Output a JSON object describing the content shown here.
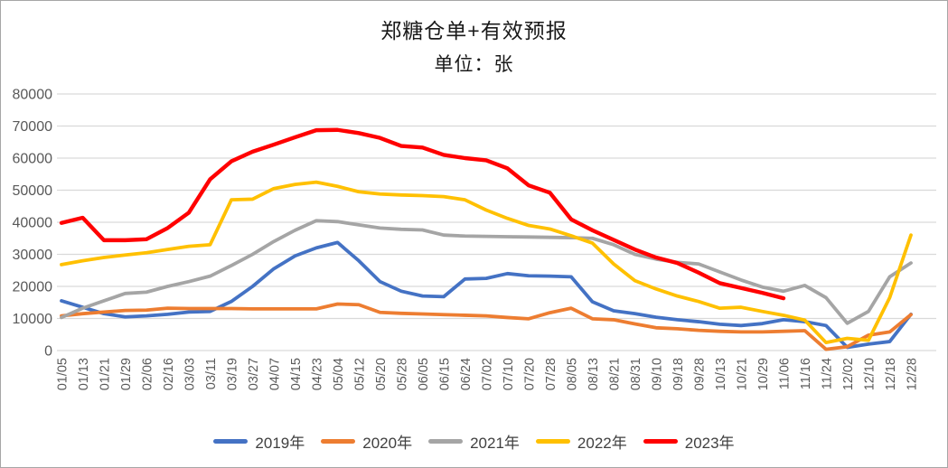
{
  "chart_data": {
    "type": "line",
    "title": "郑糖仓单+有效预报",
    "subtitle": "单位：张",
    "legend_position": "bottom",
    "grid": "horizontal",
    "ylim": [
      0,
      80000
    ],
    "yticks": [
      0,
      10000,
      20000,
      30000,
      40000,
      50000,
      60000,
      70000,
      80000
    ],
    "colors": {
      "grid": "#d9d9d9",
      "axis_text": "#595959",
      "title_text": "#1a1a1a",
      "legend_text": "#404040"
    },
    "categories": [
      "01/05",
      "01/13",
      "01/21",
      "01/29",
      "02/06",
      "02/16",
      "03/03",
      "03/11",
      "03/19",
      "03/27",
      "04/07",
      "04/15",
      "04/23",
      "05/04",
      "05/12",
      "05/20",
      "05/28",
      "06/05",
      "06/15",
      "06/24",
      "07/02",
      "07/10",
      "07/20",
      "07/28",
      "08/05",
      "08/13",
      "08/21",
      "08/31",
      "09/10",
      "09/18",
      "09/28",
      "10/13",
      "10/21",
      "10/29",
      "11/06",
      "11/16",
      "11/24",
      "12/02",
      "12/10",
      "12/18",
      "12/28"
    ],
    "series": [
      {
        "name": "2019年",
        "color": "#4472C4",
        "values": [
          15500,
          13500,
          11500,
          10500,
          10800,
          11300,
          12000,
          12200,
          15300,
          20000,
          25500,
          29500,
          32000,
          33700,
          28000,
          21500,
          18500,
          17000,
          16800,
          22300,
          22500,
          24000,
          23300,
          23200,
          23000,
          15200,
          12400,
          11500,
          10400,
          9600,
          9000,
          8200,
          7800,
          8400,
          9600,
          9000,
          7800,
          1000,
          2000,
          2800,
          11300
        ]
      },
      {
        "name": "2020年",
        "color": "#ED7D31",
        "values": [
          10800,
          11500,
          12000,
          12500,
          12600,
          13200,
          13100,
          13100,
          13100,
          13000,
          13000,
          13000,
          13000,
          14500,
          14300,
          11900,
          11600,
          11400,
          11200,
          11000,
          10800,
          10300,
          9900,
          11800,
          13200,
          9900,
          9600,
          8300,
          7100,
          6800,
          6300,
          6000,
          5800,
          5800,
          6000,
          6200,
          400,
          1200,
          4800,
          5800,
          11200
        ]
      },
      {
        "name": "2021年",
        "color": "#A5A5A5",
        "values": [
          10300,
          13200,
          15500,
          17800,
          18200,
          20000,
          21500,
          23200,
          26500,
          30000,
          34000,
          37500,
          40500,
          40200,
          39200,
          38200,
          37800,
          37600,
          36000,
          35700,
          35600,
          35500,
          35400,
          35300,
          35200,
          35000,
          33000,
          30000,
          28500,
          27500,
          27000,
          24500,
          22000,
          19800,
          18500,
          20300,
          16500,
          8500,
          12200,
          23000,
          27300
        ]
      },
      {
        "name": "2022年",
        "color": "#FFC000",
        "values": [
          26800,
          28000,
          29000,
          29800,
          30500,
          31500,
          32500,
          33000,
          47000,
          47200,
          50500,
          51800,
          52500,
          51200,
          49500,
          48800,
          48500,
          48300,
          48000,
          47000,
          43800,
          41200,
          39000,
          37900,
          35800,
          33500,
          27000,
          21800,
          19200,
          17000,
          15300,
          13200,
          13500,
          12200,
          11000,
          9500,
          2500,
          3800,
          3200,
          16500,
          36000
        ]
      },
      {
        "name": "2023年",
        "color": "#FF0000",
        "values": [
          39800,
          41400,
          34400,
          34400,
          34700,
          38200,
          43000,
          53400,
          59000,
          62000,
          64200,
          66500,
          68700,
          68800,
          67800,
          66300,
          63800,
          63300,
          61000,
          60000,
          59300,
          56800,
          51500,
          49200,
          40900,
          37500,
          34500,
          31500,
          29000,
          27300,
          24300,
          21000,
          19500,
          18000,
          16300,
          null,
          null,
          null,
          null,
          null,
          null
        ]
      }
    ]
  }
}
